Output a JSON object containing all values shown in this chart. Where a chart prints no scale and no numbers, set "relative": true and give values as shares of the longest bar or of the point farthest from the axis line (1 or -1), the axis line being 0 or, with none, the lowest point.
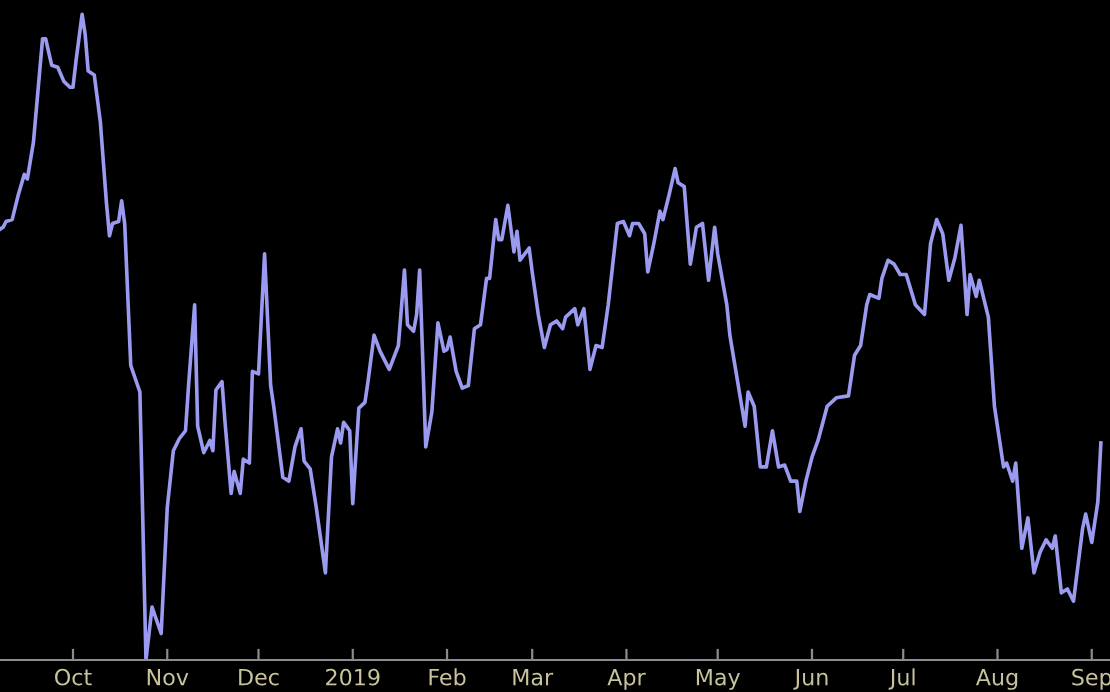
{
  "chart_data": {
    "type": "line",
    "relative": true,
    "color": "#9a9af0",
    "marker": "none",
    "line_style": "solid",
    "grid": false,
    "legend": false,
    "x": [
      "2018-09-07",
      "2018-09-08",
      "2018-09-09",
      "2018-09-11",
      "2018-09-13",
      "2018-09-15",
      "2018-09-16",
      "2018-09-18",
      "2018-09-20",
      "2018-09-21",
      "2018-09-22",
      "2018-09-24",
      "2018-09-26",
      "2018-09-28",
      "2018-09-30",
      "2018-10-01",
      "2018-10-02",
      "2018-10-04",
      "2018-10-05",
      "2018-10-06",
      "2018-10-08",
      "2018-10-10",
      "2018-10-12",
      "2018-10-13",
      "2018-10-14",
      "2018-10-16",
      "2018-10-17",
      "2018-10-18",
      "2018-10-20",
      "2018-10-23",
      "2018-10-25",
      "2018-10-27",
      "2018-10-30",
      "2018-11-01",
      "2018-11-03",
      "2018-11-05",
      "2018-11-07",
      "2018-11-08",
      "2018-11-10",
      "2018-11-11",
      "2018-11-13",
      "2018-11-15",
      "2018-11-16",
      "2018-11-17",
      "2018-11-19",
      "2018-11-20",
      "2018-11-22",
      "2018-11-23",
      "2018-11-25",
      "2018-11-26",
      "2018-11-28",
      "2018-11-29",
      "2018-12-01",
      "2018-12-03",
      "2018-12-05",
      "2018-12-06",
      "2018-12-09",
      "2018-12-11",
      "2018-12-13",
      "2018-12-15",
      "2018-12-16",
      "2018-12-18",
      "2018-12-20",
      "2018-12-23",
      "2018-12-25",
      "2018-12-27",
      "2018-12-28",
      "2018-12-29",
      "2018-12-31",
      "2019-01-01",
      "2019-01-03",
      "2019-01-05",
      "2019-01-06",
      "2019-01-08",
      "2019-01-10",
      "2019-01-13",
      "2019-01-16",
      "2019-01-18",
      "2019-01-19",
      "2019-01-21",
      "2019-01-22",
      "2019-01-23",
      "2019-01-25",
      "2019-01-27",
      "2019-01-29",
      "2019-01-31",
      "2019-02-01",
      "2019-02-02",
      "2019-02-04",
      "2019-02-06",
      "2019-02-08",
      "2019-02-10",
      "2019-02-12",
      "2019-02-14",
      "2019-02-15",
      "2019-02-17",
      "2019-02-18",
      "2019-02-19",
      "2019-02-21",
      "2019-02-23",
      "2019-02-24",
      "2019-02-25",
      "2019-02-28",
      "2019-03-01",
      "2019-03-03",
      "2019-03-05",
      "2019-03-07",
      "2019-03-09",
      "2019-03-11",
      "2019-03-12",
      "2019-03-15",
      "2019-03-16",
      "2019-03-18",
      "2019-03-20",
      "2019-03-22",
      "2019-03-24",
      "2019-03-26",
      "2019-03-29",
      "2019-03-31",
      "2019-04-02",
      "2019-04-03",
      "2019-04-05",
      "2019-04-07",
      "2019-04-08",
      "2019-04-10",
      "2019-04-12",
      "2019-04-13",
      "2019-04-15",
      "2019-04-17",
      "2019-04-18",
      "2019-04-20",
      "2019-04-22",
      "2019-04-24",
      "2019-04-26",
      "2019-04-28",
      "2019-04-30",
      "2019-05-01",
      "2019-05-04",
      "2019-05-05",
      "2019-05-10",
      "2019-05-11",
      "2019-05-13",
      "2019-05-15",
      "2019-05-17",
      "2019-05-19",
      "2019-05-21",
      "2019-05-23",
      "2019-05-25",
      "2019-05-27",
      "2019-05-28",
      "2019-05-30",
      "2019-06-01",
      "2019-06-03",
      "2019-06-06",
      "2019-06-09",
      "2019-06-13",
      "2019-06-15",
      "2019-06-17",
      "2019-06-19",
      "2019-06-20",
      "2019-06-23",
      "2019-06-24",
      "2019-06-26",
      "2019-06-28",
      "2019-06-30",
      "2019-07-02",
      "2019-07-05",
      "2019-07-08",
      "2019-07-10",
      "2019-07-12",
      "2019-07-14",
      "2019-07-16",
      "2019-07-18",
      "2019-07-20",
      "2019-07-22",
      "2019-07-23",
      "2019-07-25",
      "2019-07-26",
      "2019-07-29",
      "2019-07-31",
      "2019-08-03",
      "2019-08-04",
      "2019-08-06",
      "2019-08-07",
      "2019-08-09",
      "2019-08-11",
      "2019-08-13",
      "2019-08-15",
      "2019-08-17",
      "2019-08-19",
      "2019-08-20",
      "2019-08-22",
      "2019-08-24",
      "2019-08-26",
      "2019-08-29",
      "2019-08-30",
      "2019-09-01",
      "2019-09-03",
      "2019-09-04"
    ],
    "values": [
      0.667,
      0.67,
      0.679,
      0.682,
      0.72,
      0.752,
      0.745,
      0.802,
      0.909,
      0.962,
      0.962,
      0.921,
      0.918,
      0.896,
      0.887,
      0.887,
      0.928,
      1,
      0.969,
      0.912,
      0.906,
      0.833,
      0.708,
      0.657,
      0.676,
      0.679,
      0.711,
      0.676,
      0.456,
      0.415,
      0,
      0.082,
      0.041,
      0.236,
      0.324,
      0.343,
      0.355,
      0.425,
      0.55,
      0.362,
      0.321,
      0.34,
      0.324,
      0.418,
      0.431,
      0.368,
      0.258,
      0.292,
      0.258,
      0.311,
      0.305,
      0.447,
      0.443,
      0.629,
      0.425,
      0.393,
      0.283,
      0.277,
      0.33,
      0.358,
      0.308,
      0.296,
      0.236,
      0.135,
      0.314,
      0.358,
      0.336,
      0.368,
      0.355,
      0.242,
      0.39,
      0.399,
      0.431,
      0.503,
      0.478,
      0.45,
      0.487,
      0.604,
      0.519,
      0.509,
      0.535,
      0.604,
      0.33,
      0.384,
      0.522,
      0.478,
      0.481,
      0.5,
      0.447,
      0.421,
      0.425,
      0.513,
      0.519,
      0.591,
      0.591,
      0.682,
      0.651,
      0.651,
      0.704,
      0.632,
      0.664,
      0.619,
      0.638,
      0.601,
      0.535,
      0.484,
      0.519,
      0.525,
      0.513,
      0.531,
      0.544,
      0.519,
      0.544,
      0.45,
      0.487,
      0.484,
      0.55,
      0.676,
      0.679,
      0.657,
      0.676,
      0.676,
      0.66,
      0.601,
      0.645,
      0.695,
      0.682,
      0.72,
      0.761,
      0.739,
      0.733,
      0.613,
      0.67,
      0.676,
      0.588,
      0.67,
      0.629,
      0.55,
      0.503,
      0.362,
      0.415,
      0.393,
      0.299,
      0.299,
      0.355,
      0.299,
      0.302,
      0.277,
      0.277,
      0.23,
      0.277,
      0.314,
      0.34,
      0.393,
      0.406,
      0.409,
      0.472,
      0.487,
      0.55,
      0.566,
      0.56,
      0.591,
      0.619,
      0.613,
      0.597,
      0.597,
      0.55,
      0.535,
      0.645,
      0.682,
      0.66,
      0.588,
      0.623,
      0.673,
      0.535,
      0.597,
      0.563,
      0.588,
      0.531,
      0.393,
      0.299,
      0.305,
      0.277,
      0.305,
      0.173,
      0.22,
      0.135,
      0.167,
      0.186,
      0.173,
      0.192,
      0.104,
      0.11,
      0.091,
      0.204,
      0.226,
      0.182,
      0.245,
      0.336
    ],
    "xlim": [
      "2018-09-07",
      "2019-09-07"
    ],
    "xticks": [
      {
        "value": "2018-10-01",
        "label": "Oct"
      },
      {
        "value": "2018-11-01",
        "label": "Nov"
      },
      {
        "value": "2018-12-01",
        "label": "Dec"
      },
      {
        "value": "2019-01-01",
        "label": "2019"
      },
      {
        "value": "2019-02-01",
        "label": "Feb"
      },
      {
        "value": "2019-03-01",
        "label": "Mar"
      },
      {
        "value": "2019-04-01",
        "label": "Apr"
      },
      {
        "value": "2019-05-01",
        "label": "May"
      },
      {
        "value": "2019-06-01",
        "label": "Jun"
      },
      {
        "value": "2019-07-01",
        "label": "Jul"
      },
      {
        "value": "2019-08-01",
        "label": "Aug"
      },
      {
        "value": "2019-09-01",
        "label": "Sep"
      }
    ],
    "tick_labels": "x"
  }
}
